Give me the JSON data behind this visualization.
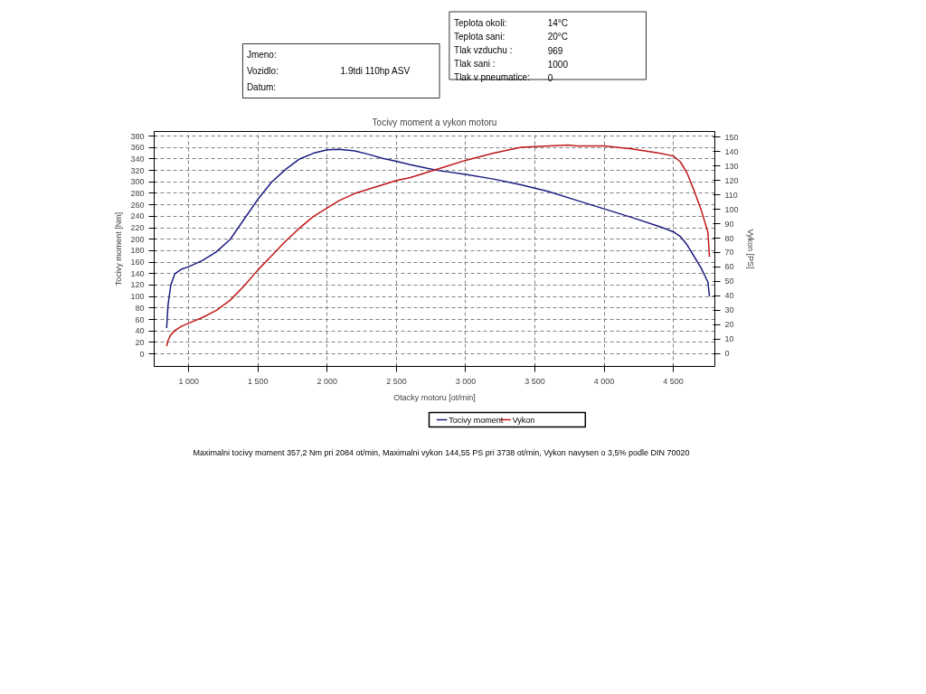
{
  "chart_data": {
    "type": "line",
    "title": "Tocivy moment a vykon motoru",
    "xlabel": "Otacky motoru [ot/min]",
    "ylabel": "Tocivy moment [Nm]",
    "y2label": "Vykon [PS]",
    "xlim": [
      750,
      4800
    ],
    "xticks": [
      {
        "value": 1000,
        "label": "1 000"
      },
      {
        "value": 1500,
        "label": "1 500"
      },
      {
        "value": 2000,
        "label": "2 000"
      },
      {
        "value": 2500,
        "label": "2 500"
      },
      {
        "value": 3000,
        "label": "3 000"
      },
      {
        "value": 3500,
        "label": "3 500"
      },
      {
        "value": 4000,
        "label": "4 000"
      },
      {
        "value": 4500,
        "label": "4 500"
      }
    ],
    "ylim": [
      -22,
      388
    ],
    "yticks": [
      0,
      20,
      40,
      60,
      80,
      100,
      120,
      140,
      160,
      180,
      200,
      220,
      240,
      260,
      280,
      300,
      320,
      340,
      360,
      380
    ],
    "y2lim": [
      -9,
      154
    ],
    "y2ticks": [
      0,
      10,
      20,
      30,
      40,
      50,
      60,
      70,
      80,
      90,
      100,
      110,
      120,
      130,
      140,
      150
    ],
    "grid": true,
    "legend": "bottom",
    "line_style": "solid",
    "series": [
      {
        "name": "Tocivy moment",
        "color": "#1c1c80",
        "x": [
          840,
          850,
          870,
          900,
          950,
          1000,
          1100,
          1200,
          1300,
          1400,
          1500,
          1600,
          1700,
          1800,
          1900,
          2000,
          2084,
          2200,
          2300,
          2400,
          2500,
          2600,
          2700,
          2800,
          3000,
          3200,
          3400,
          3600,
          3800,
          4000,
          4200,
          4400,
          4500,
          4550,
          4600,
          4650,
          4700,
          4750,
          4761
        ],
        "values": [
          45,
          85,
          120,
          140,
          148,
          152,
          163,
          178,
          200,
          235,
          270,
          300,
          322,
          340,
          350,
          356,
          357,
          354,
          348,
          341,
          336,
          330,
          325,
          320,
          313,
          305,
          295,
          283,
          268,
          253,
          238,
          222,
          213,
          205,
          190,
          170,
          150,
          125,
          100
        ]
      },
      {
        "name": "Vykon",
        "color": "#c01818",
        "axis": "y2",
        "x": [
          840,
          850,
          870,
          900,
          950,
          1000,
          1100,
          1200,
          1300,
          1400,
          1500,
          1600,
          1700,
          1800,
          1900,
          2000,
          2084,
          2200,
          2300,
          2400,
          2500,
          2600,
          2700,
          2800,
          3000,
          3200,
          3400,
          3600,
          3738,
          3800,
          4000,
          4200,
          4400,
          4500,
          4550,
          4600,
          4650,
          4700,
          4750,
          4761
        ],
        "values": [
          5,
          9,
          13,
          16,
          19,
          21,
          25,
          30,
          37,
          47,
          58,
          68,
          78,
          87,
          95,
          101,
          106,
          111,
          114,
          117,
          120,
          122,
          125,
          128,
          134,
          139,
          143,
          144,
          144.55,
          144,
          144,
          142,
          139,
          137,
          133,
          125,
          113,
          100,
          84,
          67
        ]
      }
    ],
    "annotations": [
      "Jmeno:",
      "Vozidlo:",
      "1.9tdi 110hp ASV",
      "Datum:",
      "Teplota okoli:",
      "14°C",
      "Teplota sani:",
      "20°C",
      "Tlak vzduchu :",
      "969",
      "Tlak sani :",
      "1000",
      "Tlak v pneumatice:",
      "0",
      "Maximalni tocivy moment 357,2 Nm pri 2084 ot/min,  Maximalni vykon 144,55 PS pri 3738 ot/min,  Vykon navysen o 3,5% podle DIN 70020"
    ]
  }
}
